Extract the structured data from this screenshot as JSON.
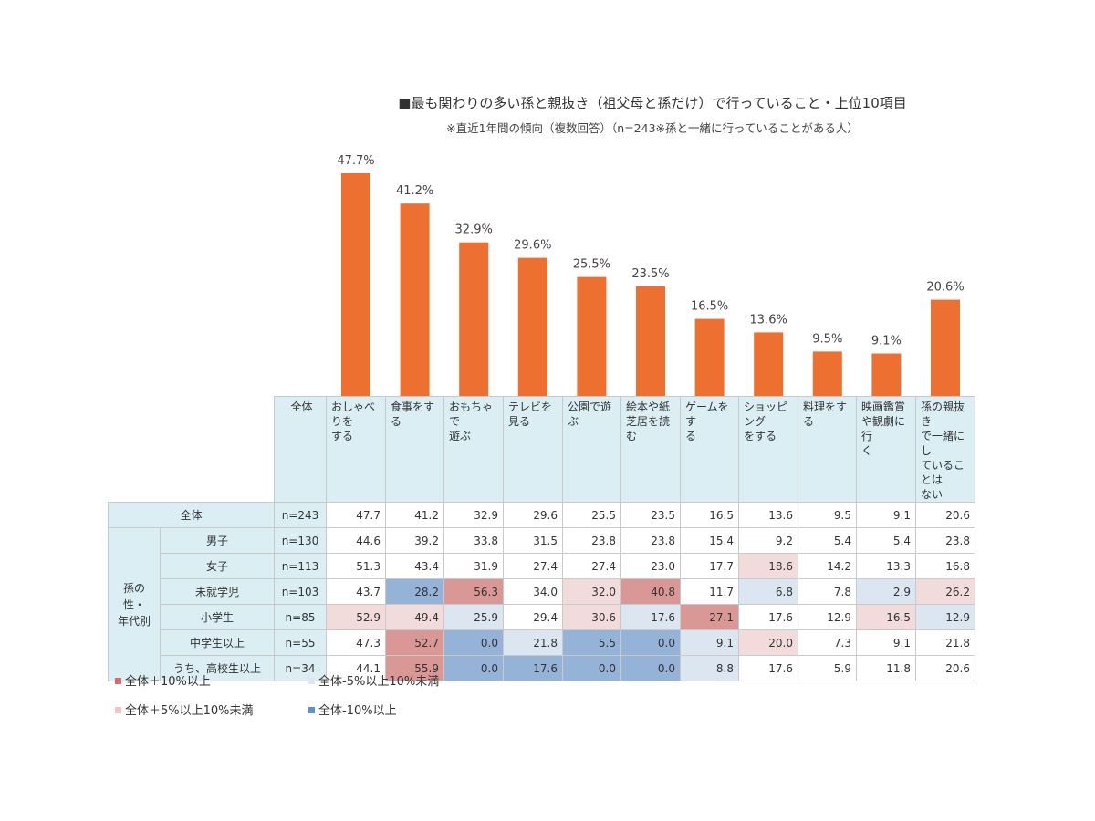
{
  "title": "■最も関わりの多い孫と親抜き（祖父母と孫だけ）で行っていること・上位10項目",
  "subtitle": "※直近1年間の傾向（複数回答）（n=243※孫と一緒に行っていることがある人）",
  "chart_data": {
    "type": "bar",
    "categories": [
      "おしゃべりをする",
      "食事をする",
      "おもちゃで遊ぶ",
      "テレビを見る",
      "公園で遊ぶ",
      "絵本や紙芝居を読む",
      "ゲームをする",
      "ショッピングをする",
      "料理をする",
      "映画鑑賞や観劇に行く",
      "孫の親抜きで一緒にしていることはない"
    ],
    "values": [
      47.7,
      41.2,
      32.9,
      29.6,
      25.5,
      23.5,
      16.5,
      13.6,
      9.5,
      9.1,
      20.6
    ],
    "value_labels": [
      "47.7%",
      "41.2%",
      "32.9%",
      "29.6%",
      "25.5%",
      "23.5%",
      "16.5%",
      "13.6%",
      "9.5%",
      "9.1%",
      "20.6%"
    ],
    "ylim": [
      0,
      50
    ],
    "bar_color": "#ed7031",
    "grid": false
  },
  "table": {
    "header_all": "全体",
    "header_lines": [
      [
        "おしゃべりを",
        "する"
      ],
      [
        "食事をする"
      ],
      [
        "おもちゃで",
        "遊ぶ"
      ],
      [
        "テレビを見る"
      ],
      [
        "公園で遊ぶ"
      ],
      [
        "絵本や紙",
        "芝居を読む"
      ],
      [
        "ゲームをす",
        "る"
      ],
      [
        "ショッピング",
        "をする"
      ],
      [
        "料理をする"
      ],
      [
        "映画鑑賞",
        "や観劇に行",
        "く"
      ],
      [
        "孫の親抜き",
        "で一緒にし",
        "ていることは",
        "ない"
      ]
    ],
    "group_label_lines": [
      "孫の性・",
      "年代別"
    ],
    "rows": [
      {
        "label": "全体",
        "n": "n=243",
        "values": [
          "47.7",
          "41.2",
          "32.9",
          "29.6",
          "25.5",
          "23.5",
          "16.5",
          "13.6",
          "9.5",
          "9.1",
          "20.6"
        ],
        "colors": [
          "",
          "",
          "",
          "",
          "",
          "",
          "",
          "",
          "",
          "",
          ""
        ]
      },
      {
        "label": "男子",
        "n": "n=130",
        "values": [
          "44.6",
          "39.2",
          "33.8",
          "31.5",
          "23.8",
          "23.8",
          "15.4",
          "9.2",
          "5.4",
          "5.4",
          "23.8"
        ],
        "colors": [
          "",
          "",
          "",
          "",
          "",
          "",
          "",
          "",
          "",
          "",
          ""
        ]
      },
      {
        "label": "女子",
        "n": "n=113",
        "values": [
          "51.3",
          "43.4",
          "31.9",
          "27.4",
          "27.4",
          "23.0",
          "17.7",
          "18.6",
          "14.2",
          "13.3",
          "16.8"
        ],
        "colors": [
          "",
          "",
          "",
          "",
          "",
          "",
          "",
          "p5",
          "",
          "",
          ""
        ]
      },
      {
        "label": "未就学児",
        "n": "n=103",
        "values": [
          "43.7",
          "28.2",
          "56.3",
          "34.0",
          "32.0",
          "40.8",
          "11.7",
          "6.8",
          "7.8",
          "2.9",
          "26.2"
        ],
        "colors": [
          "",
          "m10",
          "p10",
          "",
          "p5",
          "p10",
          "",
          "m5",
          "",
          "m5",
          "p5"
        ]
      },
      {
        "label": "小学生",
        "n": "n=85",
        "values": [
          "52.9",
          "49.4",
          "25.9",
          "29.4",
          "30.6",
          "17.6",
          "27.1",
          "17.6",
          "12.9",
          "16.5",
          "12.9"
        ],
        "colors": [
          "p5",
          "p5",
          "m5",
          "",
          "p5",
          "m5",
          "p10",
          "",
          "",
          "p5",
          "m5"
        ]
      },
      {
        "label": "中学生以上",
        "n": "n=55",
        "values": [
          "47.3",
          "52.7",
          "0.0",
          "21.8",
          "5.5",
          "0.0",
          "9.1",
          "20.0",
          "7.3",
          "9.1",
          "21.8"
        ],
        "colors": [
          "",
          "p10",
          "m10",
          "m5",
          "m10",
          "m10",
          "m5",
          "p5",
          "",
          "",
          ""
        ]
      },
      {
        "label": "うち、高校生以上",
        "n": "n=34",
        "values": [
          "44.1",
          "55.9",
          "0.0",
          "17.6",
          "0.0",
          "0.0",
          "8.8",
          "17.6",
          "5.9",
          "11.8",
          "20.6"
        ],
        "colors": [
          "",
          "p10",
          "m10",
          "m10",
          "m10",
          "m10",
          "m5",
          "",
          "",
          "",
          ""
        ]
      }
    ]
  },
  "legend": [
    {
      "label": "全体＋10%以上",
      "color": "#d9696f"
    },
    {
      "label": "全体-5%以上10%未満",
      "color": "#dce6f1"
    },
    {
      "label": "全体＋5%以上10%未満",
      "color": "#f2c4c6"
    },
    {
      "label": "全体-10%以上",
      "color": "#5b8fd0"
    }
  ]
}
